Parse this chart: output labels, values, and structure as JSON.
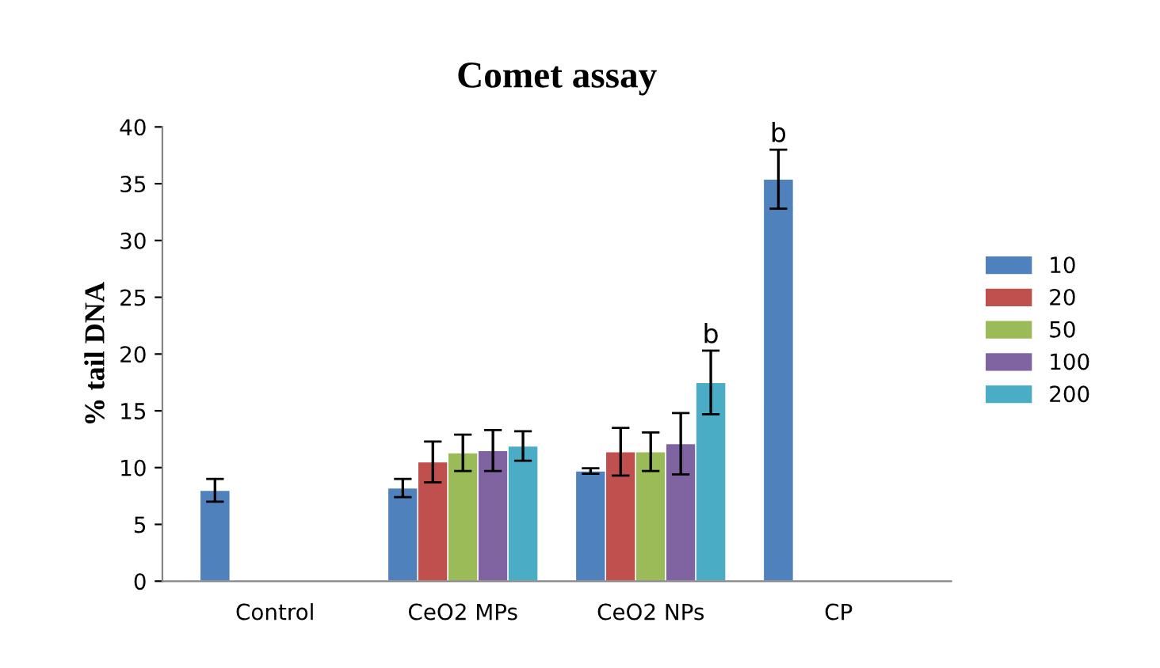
{
  "chart_data": {
    "type": "bar",
    "title": "Comet assay",
    "ylabel": "% tail DNA",
    "categories": [
      "Control",
      "CeO2 MPs",
      "CeO2 NPs",
      "CP"
    ],
    "series": [
      {
        "name": "10",
        "color": "#4f81bd",
        "values": [
          8.0,
          8.2,
          9.7,
          35.4
        ],
        "errors": [
          1.0,
          0.8,
          0.25,
          2.6
        ],
        "value_labels": [
          null,
          null,
          null,
          "b"
        ]
      },
      {
        "name": "20",
        "color": "#c0504d",
        "values": [
          null,
          10.5,
          11.4,
          null
        ],
        "errors": [
          null,
          1.8,
          2.1,
          null
        ]
      },
      {
        "name": "50",
        "color": "#9bbb59",
        "values": [
          null,
          11.3,
          11.4,
          null
        ],
        "errors": [
          null,
          1.6,
          1.7,
          null
        ]
      },
      {
        "name": "100",
        "color": "#8064a2",
        "values": [
          null,
          11.5,
          12.1,
          null
        ],
        "errors": [
          null,
          1.8,
          2.7,
          null
        ]
      },
      {
        "name": "200",
        "color": "#4bacc6",
        "values": [
          null,
          11.9,
          17.5,
          null
        ],
        "errors": [
          null,
          1.3,
          2.8,
          null
        ],
        "value_labels": [
          null,
          null,
          "b",
          null
        ]
      }
    ],
    "ylim": [
      0,
      40
    ],
    "yticks": [
      0,
      5,
      10,
      15,
      20,
      25,
      30,
      35,
      40
    ],
    "grid": false,
    "legend": "right"
  }
}
